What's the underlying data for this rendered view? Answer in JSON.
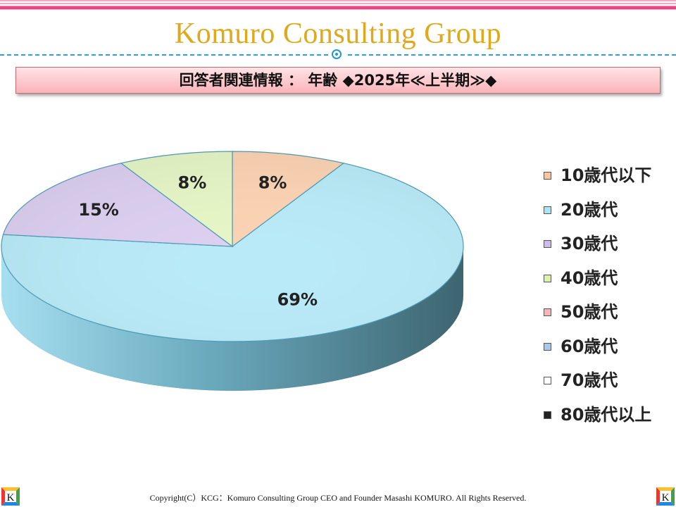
{
  "header": {
    "brand": "Komuro Consulting Group"
  },
  "headline": "回答者関連情報 ： 年齢 ◆2025年≪上半期≫◆",
  "chart_data": {
    "type": "pie",
    "title": "",
    "slices": [
      {
        "label": "10歳代以下",
        "value": 8,
        "data_label": "8%",
        "color": "#fbd3b3"
      },
      {
        "label": "20歳代",
        "value": 69,
        "data_label": "69%",
        "color": "#b9eaf8"
      },
      {
        "label": "30歳代",
        "value": 15,
        "data_label": "15%",
        "color": "#dccff0"
      },
      {
        "label": "40歳代",
        "value": 8,
        "data_label": "8%",
        "color": "#e6f6c6"
      }
    ],
    "legend": {
      "placement": "right",
      "items": [
        {
          "label": "10歳代以下",
          "color": "#fcc69a"
        },
        {
          "label": "20歳代",
          "color": "#a7e5f7"
        },
        {
          "label": "30歳代",
          "color": "#cdbcea"
        },
        {
          "label": "40歳代",
          "color": "#d9f2a8"
        },
        {
          "label": "50歳代",
          "color": "#f8b5b5"
        },
        {
          "label": "60歳代",
          "color": "#a9c8ee"
        },
        {
          "label": "70歳代",
          "color": "#ffffff"
        },
        {
          "label": "80歳代以上",
          "color": "#222222"
        }
      ]
    }
  },
  "footer": {
    "copyright": "Copyright(C）KCG：Komuro Consulting Group CEO and Founder Masashi KOMURO. All Rights Reserved."
  },
  "logos": {
    "left": "K",
    "right": "K"
  }
}
